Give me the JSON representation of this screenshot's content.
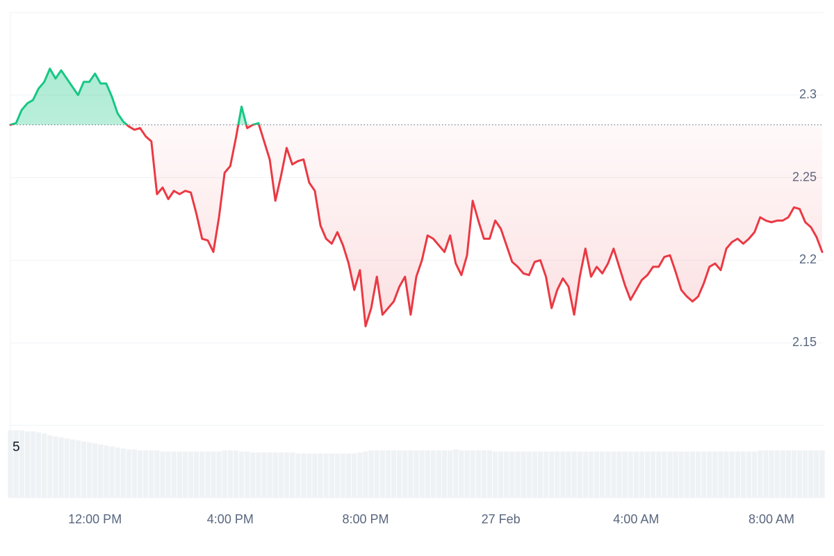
{
  "chart_data": {
    "type": "line",
    "categories": [
      null,
      null,
      null,
      null,
      null,
      null,
      null,
      null,
      null,
      null,
      null,
      null,
      null,
      null,
      null,
      "12:00 PM",
      null,
      null,
      null,
      null,
      null,
      null,
      null,
      null,
      null,
      null,
      null,
      null,
      null,
      null,
      null,
      null,
      null,
      null,
      null,
      null,
      null,
      null,
      null,
      "4:00 PM",
      null,
      null,
      null,
      null,
      null,
      null,
      null,
      null,
      null,
      null,
      null,
      null,
      null,
      null,
      null,
      null,
      null,
      null,
      null,
      null,
      null,
      null,
      null,
      "8:00 PM",
      null,
      null,
      null,
      null,
      null,
      null,
      null,
      null,
      null,
      null,
      null,
      null,
      null,
      null,
      null,
      null,
      null,
      null,
      null,
      null,
      null,
      null,
      null,
      "27 Feb",
      null,
      null,
      null,
      null,
      null,
      null,
      null,
      null,
      null,
      null,
      null,
      null,
      null,
      null,
      null,
      null,
      null,
      null,
      null,
      null,
      null,
      null,
      null,
      "4:00 AM",
      null,
      null,
      null,
      null,
      null,
      null,
      null,
      null,
      null,
      null,
      null,
      null,
      null,
      null,
      null,
      null,
      null,
      null,
      null,
      null,
      null,
      null,
      null,
      "8:00 AM",
      null,
      null,
      null,
      null,
      null,
      null,
      null,
      null,
      null
    ],
    "values": [
      2.282,
      2.283,
      2.291,
      2.295,
      2.297,
      2.304,
      2.308,
      2.316,
      2.31,
      2.315,
      2.31,
      2.305,
      2.3,
      2.308,
      2.308,
      2.313,
      2.307,
      2.307,
      2.299,
      2.289,
      2.284,
      2.281,
      2.279,
      2.28,
      2.275,
      2.272,
      2.24,
      2.244,
      2.237,
      2.242,
      2.24,
      2.242,
      2.241,
      2.228,
      2.213,
      2.212,
      2.205,
      2.226,
      2.253,
      2.257,
      2.274,
      2.293,
      2.28,
      2.282,
      2.283,
      2.272,
      2.261,
      2.236,
      2.251,
      2.268,
      2.258,
      2.26,
      2.261,
      2.247,
      2.242,
      2.221,
      2.213,
      2.21,
      2.217,
      2.209,
      2.198,
      2.182,
      2.194,
      2.16,
      2.171,
      2.19,
      2.167,
      2.171,
      2.175,
      2.184,
      2.19,
      2.167,
      2.19,
      2.2,
      2.215,
      2.213,
      2.209,
      2.205,
      2.215,
      2.198,
      2.191,
      2.203,
      2.236,
      2.224,
      2.213,
      2.213,
      2.224,
      2.219,
      2.209,
      2.199,
      2.196,
      2.192,
      2.191,
      2.199,
      2.2,
      2.19,
      2.171,
      2.182,
      2.189,
      2.184,
      2.167,
      2.19,
      2.207,
      2.19,
      2.196,
      2.192,
      2.198,
      2.207,
      2.196,
      2.185,
      2.176,
      2.182,
      2.188,
      2.191,
      2.196,
      2.196,
      2.202,
      2.203,
      2.193,
      2.182,
      2.178,
      2.175,
      2.178,
      2.186,
      2.196,
      2.198,
      2.194,
      2.207,
      2.211,
      2.213,
      2.21,
      2.213,
      2.217,
      2.226,
      2.224,
      2.223,
      2.224,
      2.224,
      2.226,
      2.232,
      2.231,
      2.223,
      2.22,
      2.214,
      2.205
    ],
    "baseline": 2.282,
    "color_up": "#16c784",
    "color_down": "#ea3943",
    "ylim": [
      2.1,
      2.35
    ],
    "yticks": [
      2.15,
      2.2,
      2.25,
      2.3
    ],
    "grid": true,
    "volume": {
      "values": [
        6.7,
        6.7,
        6.7,
        6.6,
        6.6,
        6.5,
        6.4,
        6.2,
        6.1,
        6.0,
        5.9,
        5.8,
        5.7,
        5.6,
        5.5,
        5.4,
        5.3,
        5.2,
        5.1,
        5.0,
        4.9,
        4.8,
        4.8,
        4.7,
        4.7,
        4.7,
        4.7,
        4.6,
        4.6,
        4.6,
        4.6,
        4.6,
        4.6,
        4.6,
        4.6,
        4.6,
        4.6,
        4.6,
        4.7,
        4.7,
        4.7,
        4.6,
        4.6,
        4.5,
        4.5,
        4.5,
        4.5,
        4.5,
        4.5,
        4.5,
        4.5,
        4.4,
        4.4,
        4.4,
        4.4,
        4.4,
        4.4,
        4.4,
        4.4,
        4.4,
        4.4,
        4.4,
        4.5,
        4.6,
        4.7,
        4.7,
        4.7,
        4.7,
        4.7,
        4.7,
        4.7,
        4.7,
        4.7,
        4.7,
        4.7,
        4.7,
        4.7,
        4.7,
        4.7,
        4.8,
        4.7,
        4.7,
        4.7,
        4.7,
        4.7,
        4.7,
        4.6,
        4.6,
        4.6,
        4.6,
        4.6,
        4.6,
        4.6,
        4.6,
        4.6,
        4.6,
        4.6,
        4.6,
        4.6,
        4.6,
        4.6,
        4.6,
        4.6,
        4.6,
        4.6,
        4.6,
        4.6,
        4.6,
        4.6,
        4.6,
        4.6,
        4.6,
        4.6,
        4.6,
        4.6,
        4.6,
        4.6,
        4.6,
        4.6,
        4.6,
        4.6,
        4.6,
        4.6,
        4.6,
        4.6,
        4.6,
        4.6,
        4.6,
        4.6,
        4.6,
        4.6,
        4.6,
        4.6,
        4.7,
        4.7,
        4.7,
        4.7,
        4.7,
        4.7,
        4.7,
        4.7,
        4.7,
        4.7,
        4.7,
        4.7
      ],
      "ylim": [
        0,
        7.2
      ],
      "yticks": [
        5
      ],
      "color": "#eff2f5"
    }
  }
}
